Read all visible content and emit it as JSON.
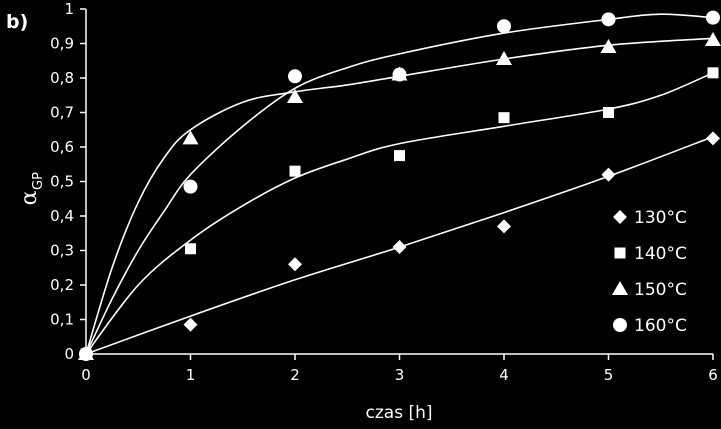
{
  "chart_data": {
    "type": "scatter",
    "panel_label": "b)",
    "xlabel": "czas [h]",
    "ylabel": {
      "symbol": "α",
      "subscript": "GP"
    },
    "xlim": [
      0,
      6
    ],
    "ylim": [
      0,
      1
    ],
    "x_ticks": [
      0,
      1,
      2,
      3,
      4,
      5,
      6
    ],
    "x_tick_labels": [
      "0",
      "1",
      "2",
      "3",
      "4",
      "5",
      "6"
    ],
    "y_ticks": [
      0,
      0.1,
      0.2,
      0.3,
      0.4,
      0.5,
      0.6,
      0.7,
      0.8,
      0.9,
      1
    ],
    "y_tick_labels": [
      "0",
      "0,1",
      "0,2",
      "0,3",
      "0,4",
      "0,5",
      "0,6",
      "0,7",
      "0,8",
      "0,9",
      "1"
    ],
    "grid": false,
    "legend_position": "right",
    "colors": {
      "background": "#000000",
      "foreground": "#ffffff"
    },
    "series": [
      {
        "name": "130°C",
        "marker": "diamond",
        "x": [
          0,
          1,
          2,
          3,
          4,
          5,
          6
        ],
        "y": [
          0,
          0.085,
          0.26,
          0.31,
          0.37,
          0.52,
          0.625
        ],
        "fit": [
          [
            0,
            0
          ],
          [
            1,
            0.11
          ],
          [
            2,
            0.215
          ],
          [
            3,
            0.31
          ],
          [
            4,
            0.41
          ],
          [
            5,
            0.515
          ],
          [
            6,
            0.63
          ]
        ]
      },
      {
        "name": "140°C",
        "marker": "square",
        "x": [
          0,
          1,
          2,
          3,
          4,
          5,
          6
        ],
        "y": [
          0,
          0.305,
          0.53,
          0.575,
          0.685,
          0.7,
          0.815
        ],
        "fit": [
          [
            0,
            0
          ],
          [
            0.5,
            0.2
          ],
          [
            1,
            0.33
          ],
          [
            1.5,
            0.43
          ],
          [
            2,
            0.51
          ],
          [
            2.5,
            0.565
          ],
          [
            3,
            0.61
          ],
          [
            4,
            0.66
          ],
          [
            5,
            0.71
          ],
          [
            5.5,
            0.75
          ],
          [
            6,
            0.815
          ]
        ]
      },
      {
        "name": "150°C",
        "marker": "triangle",
        "x": [
          0,
          1,
          2,
          3,
          4,
          5,
          6
        ],
        "y": [
          0,
          0.625,
          0.745,
          0.81,
          0.855,
          0.89,
          0.91
        ],
        "fit": [
          [
            0,
            0
          ],
          [
            0.25,
            0.25
          ],
          [
            0.5,
            0.44
          ],
          [
            0.75,
            0.57
          ],
          [
            1,
            0.65
          ],
          [
            1.5,
            0.73
          ],
          [
            2,
            0.76
          ],
          [
            2.5,
            0.78
          ],
          [
            3,
            0.805
          ],
          [
            4,
            0.855
          ],
          [
            5,
            0.895
          ],
          [
            6,
            0.915
          ]
        ]
      },
      {
        "name": "160°C",
        "marker": "circle",
        "x": [
          0,
          1,
          2,
          3,
          4,
          5,
          6
        ],
        "y": [
          0,
          0.485,
          0.805,
          0.81,
          0.95,
          0.97,
          0.975
        ],
        "fit": [
          [
            0,
            0
          ],
          [
            0.25,
            0.16
          ],
          [
            0.5,
            0.3
          ],
          [
            0.75,
            0.415
          ],
          [
            1,
            0.52
          ],
          [
            1.5,
            0.66
          ],
          [
            2,
            0.77
          ],
          [
            2.5,
            0.83
          ],
          [
            3,
            0.87
          ],
          [
            4,
            0.93
          ],
          [
            5,
            0.97
          ],
          [
            5.5,
            0.985
          ],
          [
            6,
            0.975
          ]
        ]
      }
    ]
  }
}
